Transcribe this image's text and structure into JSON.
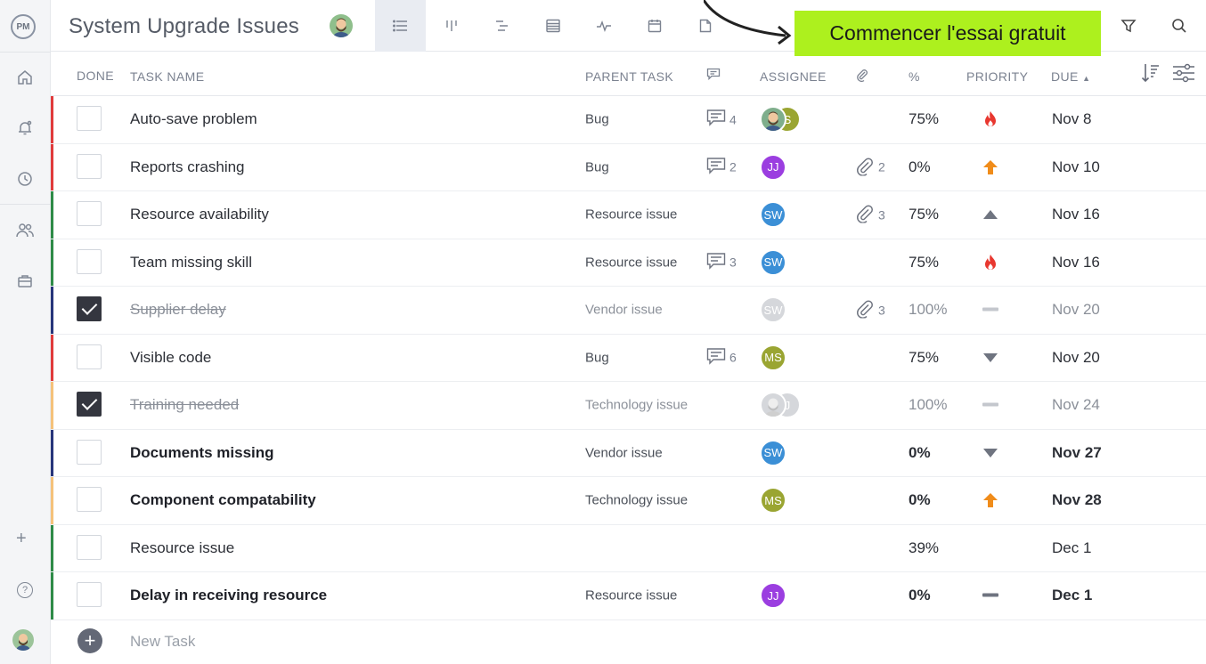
{
  "header": {
    "title": "System Upgrade Issues",
    "cta_label": "Commencer l'essai gratuit"
  },
  "rail": {
    "logo": "PM"
  },
  "columns": {
    "done": "DONE",
    "task_name": "TASK NAME",
    "parent_task": "PARENT TASK",
    "assignee": "ASSIGNEE",
    "percent": "%",
    "priority": "PRIORITY",
    "due": "DUE"
  },
  "colors": {
    "cta": "#adf01e",
    "red": "#e03b3b",
    "green": "#2e8b47",
    "navy": "#27357a",
    "orange": "#f5c27a",
    "purple": "#9b3ee0",
    "blue": "#3b8fd6",
    "olive": "#9aa532"
  },
  "rows": [
    {
      "name": "Auto-save problem",
      "parent": "Bug",
      "comments": "4",
      "attachments": "",
      "pct": "75%",
      "priority": "critical",
      "due": "Nov 8",
      "bar": "#e03b3b",
      "done": false,
      "bold": false,
      "assignees": [
        {
          "initials": "",
          "color": "#7fae8c",
          "face": true
        },
        {
          "initials": "S",
          "color": "#9aa532"
        }
      ]
    },
    {
      "name": "Reports crashing",
      "parent": "Bug",
      "comments": "2",
      "attachments": "2",
      "pct": "0%",
      "priority": "high",
      "due": "Nov 10",
      "bar": "#e03b3b",
      "done": false,
      "bold": false,
      "assignees": [
        {
          "initials": "JJ",
          "color": "#9b3ee0"
        }
      ]
    },
    {
      "name": "Resource availability",
      "parent": "Resource issue",
      "comments": "",
      "attachments": "3",
      "pct": "75%",
      "priority": "medium",
      "due": "Nov 16",
      "bar": "#2e8b47",
      "done": false,
      "bold": false,
      "assignees": [
        {
          "initials": "SW",
          "color": "#3b8fd6"
        }
      ]
    },
    {
      "name": "Team missing skill",
      "parent": "Resource issue",
      "comments": "3",
      "attachments": "",
      "pct": "75%",
      "priority": "critical",
      "due": "Nov 16",
      "bar": "#2e8b47",
      "done": false,
      "bold": false,
      "assignees": [
        {
          "initials": "SW",
          "color": "#3b8fd6"
        }
      ]
    },
    {
      "name": "Supplier delay",
      "parent": "Vendor issue",
      "comments": "",
      "attachments": "3",
      "pct": "100%",
      "priority": "none",
      "due": "Nov 20",
      "bar": "#27357a",
      "done": true,
      "bold": false,
      "assignees": [
        {
          "initials": "SW",
          "color": "#d5d7db"
        }
      ]
    },
    {
      "name": "Visible code",
      "parent": "Bug",
      "comments": "6",
      "attachments": "",
      "pct": "75%",
      "priority": "low",
      "due": "Nov 20",
      "bar": "#e03b3b",
      "done": false,
      "bold": false,
      "assignees": [
        {
          "initials": "MS",
          "color": "#9aa532"
        }
      ]
    },
    {
      "name": "Training needed",
      "parent": "Technology issue",
      "comments": "",
      "attachments": "",
      "pct": "100%",
      "priority": "none",
      "due": "Nov 24",
      "bar": "#f5c27a",
      "done": true,
      "bold": false,
      "assignees": [
        {
          "initials": "",
          "color": "#d5d7db",
          "face": true
        },
        {
          "initials": "J",
          "color": "#d5d7db"
        }
      ]
    },
    {
      "name": "Documents missing",
      "parent": "Vendor issue",
      "comments": "",
      "attachments": "",
      "pct": "0%",
      "priority": "low",
      "due": "Nov 27",
      "bar": "#27357a",
      "done": false,
      "bold": true,
      "assignees": [
        {
          "initials": "SW",
          "color": "#3b8fd6"
        }
      ]
    },
    {
      "name": "Component compatability",
      "parent": "Technology issue",
      "comments": "",
      "attachments": "",
      "pct": "0%",
      "priority": "high",
      "due": "Nov 28",
      "bar": "#f5c27a",
      "done": false,
      "bold": true,
      "assignees": [
        {
          "initials": "MS",
          "color": "#9aa532"
        }
      ]
    },
    {
      "name": "Resource issue",
      "parent": "",
      "comments": "",
      "attachments": "",
      "pct": "39%",
      "priority": "",
      "due": "Dec 1",
      "bar": "#2e8b47",
      "done": false,
      "bold": false,
      "assignees": []
    },
    {
      "name": "Delay in receiving resource",
      "parent": "Resource issue",
      "comments": "",
      "attachments": "",
      "pct": "0%",
      "priority": "none-dark",
      "due": "Dec 1",
      "bar": "#2e8b47",
      "done": false,
      "bold": true,
      "assignees": [
        {
          "initials": "JJ",
          "color": "#9b3ee0"
        }
      ]
    }
  ],
  "new_task": {
    "label": "New Task"
  }
}
